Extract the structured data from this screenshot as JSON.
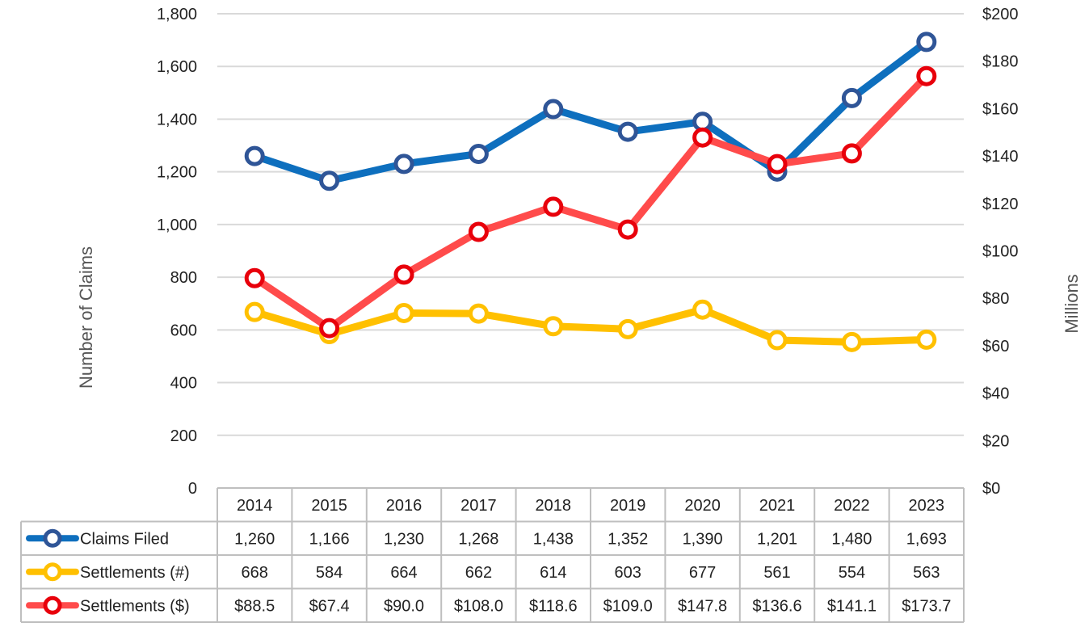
{
  "chart_data": {
    "type": "line",
    "title": "",
    "categories": [
      "2014",
      "2015",
      "2016",
      "2017",
      "2018",
      "2019",
      "2020",
      "2021",
      "2022",
      "2023"
    ],
    "y_left": {
      "label": "Number of Claims",
      "range": [
        0,
        1800
      ],
      "ticks": [
        0,
        200,
        400,
        600,
        800,
        1000,
        1200,
        1400,
        1600,
        1800
      ],
      "tick_labels": [
        "0",
        "200",
        "400",
        "600",
        "800",
        "1,000",
        "1,200",
        "1,400",
        "1,600",
        "1,800"
      ]
    },
    "y_right": {
      "label": "Millions",
      "range": [
        0,
        200
      ],
      "ticks": [
        0,
        20,
        40,
        60,
        80,
        100,
        120,
        140,
        160,
        180,
        200
      ],
      "tick_labels": [
        "$0",
        "$20",
        "$40",
        "$60",
        "$80",
        "$100",
        "$120",
        "$140",
        "$160",
        "$180",
        "$200"
      ]
    },
    "grid": true,
    "legend": "data-table",
    "series": [
      {
        "name": "Claims Filed",
        "axis": "left",
        "color": "#0E6FBE",
        "marker_color": "#2F5597",
        "values": [
          1260,
          1166,
          1230,
          1268,
          1438,
          1352,
          1390,
          1201,
          1480,
          1693
        ],
        "labels": [
          "1,260",
          "1,166",
          "1,230",
          "1,268",
          "1,438",
          "1,352",
          "1,390",
          "1,201",
          "1,480",
          "1,693"
        ]
      },
      {
        "name": "Settlements (#)",
        "axis": "left",
        "color": "#FFC000",
        "marker_color": "#FFC000",
        "values": [
          668,
          584,
          664,
          662,
          614,
          603,
          677,
          561,
          554,
          563
        ],
        "labels": [
          "668",
          "584",
          "664",
          "662",
          "614",
          "603",
          "677",
          "561",
          "554",
          "563"
        ]
      },
      {
        "name": "Settlements ($)",
        "axis": "right",
        "color": "#FF4B4B",
        "marker_color": "#E8000B",
        "values": [
          88.5,
          67.4,
          90.0,
          108.0,
          118.6,
          109.0,
          147.8,
          136.6,
          141.1,
          173.7
        ],
        "labels": [
          "$88.5",
          "$67.4",
          "$90.0",
          "$108.0",
          "$118.6",
          "$109.0",
          "$147.8",
          "$136.6",
          "$141.1",
          "$173.7"
        ]
      }
    ]
  }
}
